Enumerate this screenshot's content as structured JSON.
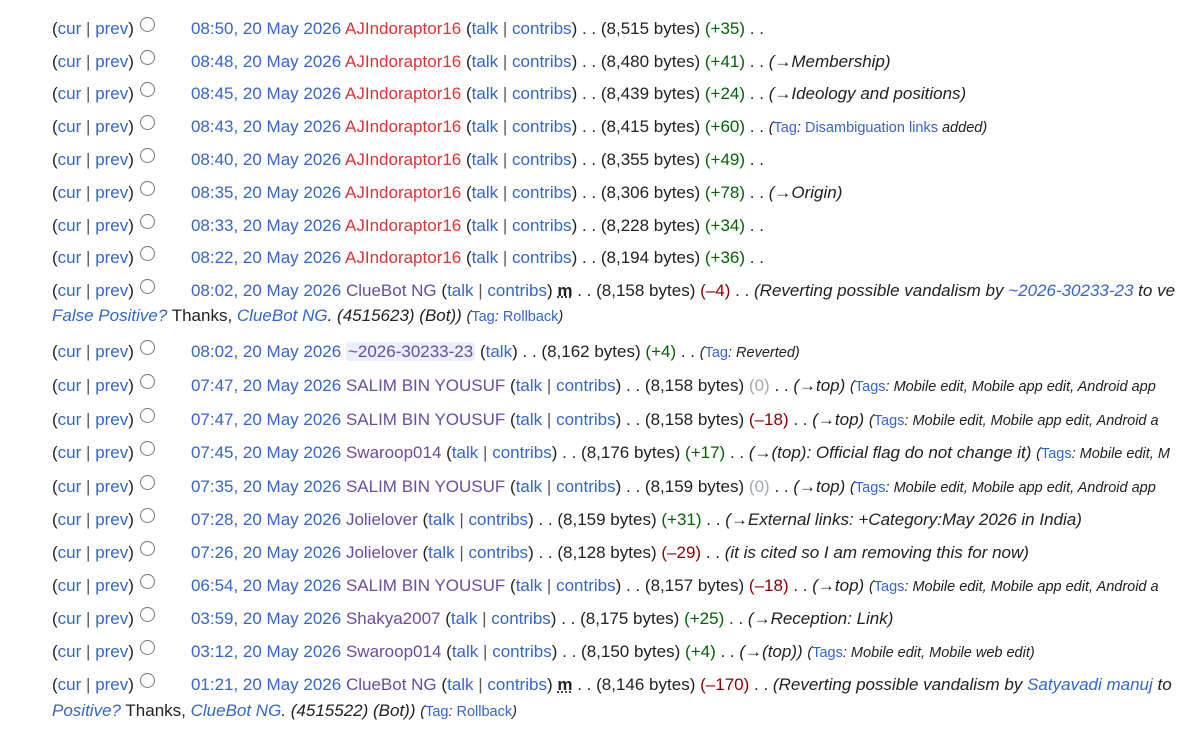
{
  "labels": {
    "open": "(",
    "close": ")",
    "pipe": "|",
    "dots": ". .",
    "cur": "cur",
    "prev": "prev",
    "talk": "talk",
    "contribs": "contribs",
    "minor": "m"
  },
  "rows": [
    {
      "time": "08:50, 20 May 2026",
      "user": "AJIndoraptor16",
      "red": true,
      "size": "8,515 bytes",
      "diff": "+35",
      "parts": []
    },
    {
      "time": "08:48, 20 May 2026",
      "user": "AJIndoraptor16",
      "red": true,
      "size": "8,480 bytes",
      "diff": "+41",
      "parts": [
        {
          "t": "(→Membership)",
          "c": "s"
        }
      ]
    },
    {
      "time": "08:45, 20 May 2026",
      "user": "AJIndoraptor16",
      "red": true,
      "size": "8,439 bytes",
      "diff": "+24",
      "parts": [
        {
          "t": "(→Ideology and positions)",
          "c": "s"
        }
      ]
    },
    {
      "time": "08:43, 20 May 2026",
      "user": "AJIndoraptor16",
      "red": true,
      "size": "8,415 bytes",
      "diff": "+60",
      "parts": [
        {
          "t": "(",
          "c": "g"
        },
        {
          "t": "Tag",
          "c": "gl"
        },
        {
          "t": ": ",
          "c": "g"
        },
        {
          "t": "Disambiguation links",
          "c": "gl"
        },
        {
          "t": " added)",
          "c": "g"
        }
      ]
    },
    {
      "time": "08:40, 20 May 2026",
      "user": "AJIndoraptor16",
      "red": true,
      "size": "8,355 bytes",
      "diff": "+49",
      "parts": []
    },
    {
      "time": "08:35, 20 May 2026",
      "user": "AJIndoraptor16",
      "red": true,
      "size": "8,306 bytes",
      "diff": "+78",
      "parts": [
        {
          "t": "(→Origin)",
          "c": "s"
        }
      ]
    },
    {
      "time": "08:33, 20 May 2026",
      "user": "AJIndoraptor16",
      "red": true,
      "size": "8,228 bytes",
      "diff": "+34",
      "parts": []
    },
    {
      "time": "08:22, 20 May 2026",
      "user": "AJIndoraptor16",
      "red": true,
      "size": "8,194 bytes",
      "diff": "+36",
      "parts": []
    },
    {
      "time": "08:02, 20 May 2026",
      "user": "ClueBot NG",
      "minor": true,
      "size": "8,158 bytes",
      "diff": "–4",
      "parts": [
        {
          "t": "(Reverting possible vandalism by ",
          "c": "s"
        },
        {
          "t": "~2026-30233-23",
          "c": "sl"
        },
        {
          "t": " to ve",
          "c": "s"
        }
      ],
      "line2": [
        {
          "t": "False Positive?",
          "c": "sl"
        },
        {
          "t": " Thanks, ",
          "c": "n"
        },
        {
          "t": "ClueBot NG",
          "c": "sl"
        },
        {
          "t": ". (4515623) (Bot)) ",
          "c": "s"
        },
        {
          "t": "(",
          "c": "g"
        },
        {
          "t": "Tag",
          "c": "gl"
        },
        {
          "t": ": ",
          "c": "g"
        },
        {
          "t": "Rollback",
          "c": "gl"
        },
        {
          "t": ")",
          "c": "g"
        }
      ]
    },
    {
      "time": "08:02, 20 May 2026",
      "user": "~2026-30233-23",
      "anon": true,
      "size": "8,162 bytes",
      "diff": "+4",
      "parts": [
        {
          "t": "(",
          "c": "g"
        },
        {
          "t": "Tag",
          "c": "gl"
        },
        {
          "t": ": Reverted)",
          "c": "g"
        }
      ]
    },
    {
      "time": "07:47, 20 May 2026",
      "user": "SALIM BIN YOUSUF",
      "size": "8,158 bytes",
      "diff": "0",
      "parts": [
        {
          "t": "(→top) ",
          "c": "s"
        },
        {
          "t": "(",
          "c": "g"
        },
        {
          "t": "Tags",
          "c": "gl"
        },
        {
          "t": ": Mobile edit, Mobile app edit, Android app",
          "c": "g"
        }
      ]
    },
    {
      "time": "07:47, 20 May 2026",
      "user": "SALIM BIN YOUSUF",
      "size": "8,158 bytes",
      "diff": "–18",
      "parts": [
        {
          "t": "(→top) ",
          "c": "s"
        },
        {
          "t": "(",
          "c": "g"
        },
        {
          "t": "Tags",
          "c": "gl"
        },
        {
          "t": ": Mobile edit, Mobile app edit, Android a",
          "c": "g"
        }
      ]
    },
    {
      "time": "07:45, 20 May 2026",
      "user": "Swaroop014",
      "size": "8,176 bytes",
      "diff": "+17",
      "parts": [
        {
          "t": "(→(top): Official flag do not change it) ",
          "c": "s"
        },
        {
          "t": "(",
          "c": "g"
        },
        {
          "t": "Tags",
          "c": "gl"
        },
        {
          "t": ": Mobile edit, M",
          "c": "g"
        }
      ]
    },
    {
      "time": "07:35, 20 May 2026",
      "user": "SALIM BIN YOUSUF",
      "size": "8,159 bytes",
      "diff": "0",
      "parts": [
        {
          "t": "(→top) ",
          "c": "s"
        },
        {
          "t": "(",
          "c": "g"
        },
        {
          "t": "Tags",
          "c": "gl"
        },
        {
          "t": ": Mobile edit, Mobile app edit, Android app",
          "c": "g"
        }
      ]
    },
    {
      "time": "07:28, 20 May 2026",
      "user": "Jolielover",
      "size": "8,159 bytes",
      "diff": "+31",
      "parts": [
        {
          "t": "(→External links: +Category:May 2026 in India)",
          "c": "s"
        }
      ]
    },
    {
      "time": "07:26, 20 May 2026",
      "user": "Jolielover",
      "size": "8,128 bytes",
      "diff": "–29",
      "parts": [
        {
          "t": "(it is cited so I am removing this for now)",
          "c": "s"
        }
      ]
    },
    {
      "time": "06:54, 20 May 2026",
      "user": "SALIM BIN YOUSUF",
      "size": "8,157 bytes",
      "diff": "–18",
      "parts": [
        {
          "t": "(→top) ",
          "c": "s"
        },
        {
          "t": "(",
          "c": "g"
        },
        {
          "t": "Tags",
          "c": "gl"
        },
        {
          "t": ": Mobile edit, Mobile app edit, Android a",
          "c": "g"
        }
      ]
    },
    {
      "time": "03:59, 20 May 2026",
      "user": "Shakya2007",
      "size": "8,175 bytes",
      "diff": "+25",
      "parts": [
        {
          "t": "(→Reception: Link)",
          "c": "s"
        }
      ]
    },
    {
      "time": "03:12, 20 May 2026",
      "user": "Swaroop014",
      "size": "8,150 bytes",
      "diff": "+4",
      "parts": [
        {
          "t": "(→(top)) ",
          "c": "s"
        },
        {
          "t": "(",
          "c": "g"
        },
        {
          "t": "Tags",
          "c": "gl"
        },
        {
          "t": ": Mobile edit, Mobile web edit)",
          "c": "g"
        }
      ]
    },
    {
      "time": "01:21, 20 May 2026",
      "user": "ClueBot NG",
      "minor": true,
      "size": "8,146 bytes",
      "diff": "–170",
      "parts": [
        {
          "t": "(Reverting possible vandalism by ",
          "c": "s"
        },
        {
          "t": "Satyavadi manuj",
          "c": "sl"
        },
        {
          "t": " to",
          "c": "s"
        }
      ],
      "line2": [
        {
          "t": "Positive?",
          "c": "sl"
        },
        {
          "t": " Thanks, ",
          "c": "n"
        },
        {
          "t": "ClueBot NG",
          "c": "sl"
        },
        {
          "t": ". (4515522) (Bot)) ",
          "c": "s"
        },
        {
          "t": "(",
          "c": "g"
        },
        {
          "t": "Tag",
          "c": "gl"
        },
        {
          "t": ": ",
          "c": "g"
        },
        {
          "t": "Rollback",
          "c": "gl"
        },
        {
          "t": ")",
          "c": "g"
        }
      ]
    }
  ]
}
